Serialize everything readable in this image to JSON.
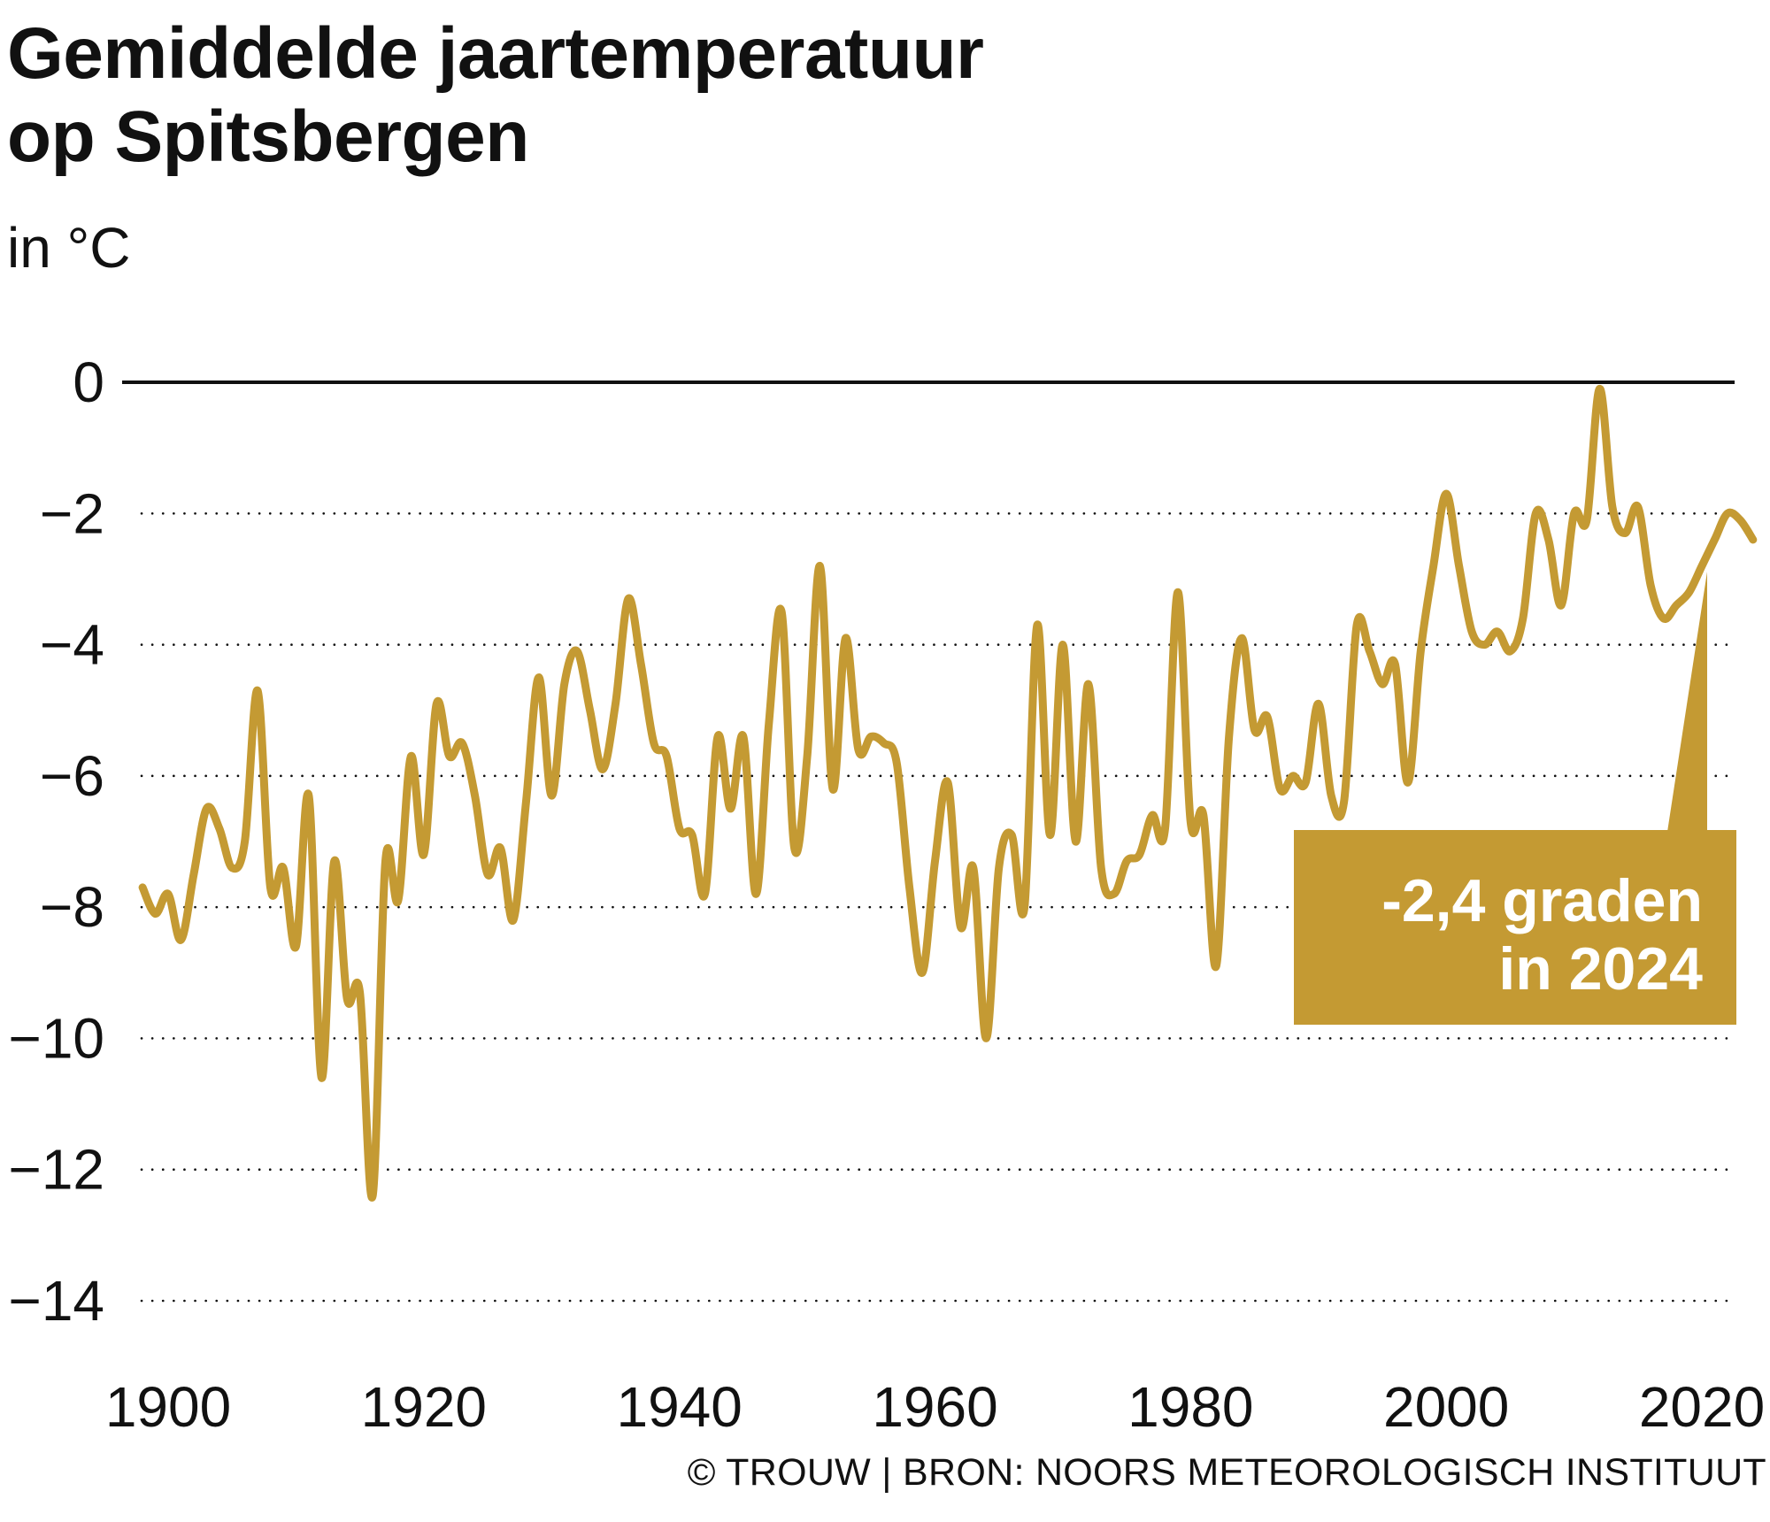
{
  "header": {
    "title_line1": "Gemiddelde jaartemperatuur",
    "title_line2": "op Spitsbergen",
    "unit": "in °C"
  },
  "source": "© TROUW | BRON: NOORS METEOROLOGISCH INSTITUUT",
  "annotation": {
    "line1": "-2,4 graden",
    "line2": "in 2024"
  },
  "colors": {
    "series": "#c49a33",
    "callout_bg": "#c49a33",
    "zero_line": "#111111",
    "grid": "#111111",
    "text": "#111111"
  },
  "chart_data": {
    "type": "line",
    "title": "Gemiddelde jaartemperatuur op Spitsbergen",
    "subtitle": "in °C",
    "xlabel": "",
    "ylabel": "",
    "xlim": [
      1897,
      2023
    ],
    "ylim": [
      -14,
      0
    ],
    "grid": "dotted horizontal",
    "y_ticks": [
      0,
      -2,
      -4,
      -6,
      -8,
      -10,
      -12,
      -14
    ],
    "y_tick_labels": [
      "0",
      "−2",
      "−4",
      "−6",
      "−8",
      "−10",
      "−12",
      "−14"
    ],
    "x_ticks": [
      1900,
      1920,
      1940,
      1960,
      1980,
      2000,
      2020
    ],
    "x_tick_labels": [
      "1900",
      "1920",
      "1940",
      "1960",
      "1980",
      "2000",
      "2020"
    ],
    "series": [
      {
        "x": [
          1898,
          1899,
          1900,
          1901,
          1902,
          1903,
          1904,
          1905,
          1906,
          1907,
          1908,
          1909,
          1910,
          1911,
          1912,
          1913,
          1914,
          1915,
          1916,
          1917,
          1918,
          1919,
          1920,
          1921,
          1922,
          1923,
          1924,
          1925,
          1926,
          1927,
          1928,
          1929,
          1930,
          1931,
          1932,
          1933,
          1934,
          1935,
          1936,
          1937,
          1938,
          1939,
          1940,
          1941,
          1942,
          1943,
          1944,
          1945,
          1946,
          1947,
          1948,
          1949,
          1950,
          1951,
          1952,
          1953,
          1954,
          1955,
          1956,
          1957,
          1958,
          1959,
          1960,
          1961,
          1962,
          1963,
          1964,
          1965,
          1966,
          1967,
          1968,
          1969,
          1970,
          1971,
          1972,
          1973,
          1974,
          1975,
          1976,
          1977,
          1978,
          1979,
          1980,
          1981,
          1982,
          1983,
          1984,
          1985,
          1986,
          1987,
          1988,
          1989,
          1990,
          1991,
          1992,
          1993,
          1994,
          1995,
          1996,
          1997,
          1998,
          1999,
          2000,
          2001,
          2002,
          2003,
          2004,
          2005,
          2006,
          2007,
          2008,
          2009,
          2010,
          2011,
          2012,
          2013,
          2014,
          2015,
          2016,
          2017,
          2018,
          2019,
          2020,
          2021,
          2022,
          2023,
          2024
        ],
        "values": [
          -7.7,
          -8.1,
          -7.8,
          -8.5,
          -7.5,
          -6.5,
          -6.8,
          -7.4,
          -7.0,
          -4.7,
          -7.7,
          -7.4,
          -8.6,
          -6.3,
          -10.6,
          -7.3,
          -9.4,
          -9.3,
          -12.4,
          -7.3,
          -7.9,
          -5.7,
          -7.2,
          -4.9,
          -5.7,
          -5.5,
          -6.3,
          -7.5,
          -7.1,
          -8.2,
          -6.4,
          -4.5,
          -6.3,
          -4.6,
          -4.1,
          -5.0,
          -5.9,
          -4.9,
          -3.3,
          -4.3,
          -5.5,
          -5.7,
          -6.8,
          -6.9,
          -7.8,
          -5.4,
          -6.5,
          -5.4,
          -7.8,
          -5.2,
          -3.5,
          -7.1,
          -5.7,
          -2.8,
          -6.2,
          -3.9,
          -5.6,
          -5.4,
          -5.5,
          -5.8,
          -7.7,
          -9.0,
          -7.3,
          -6.1,
          -8.3,
          -7.4,
          -10.0,
          -7.4,
          -6.9,
          -8.0,
          -3.7,
          -6.9,
          -4.0,
          -7.0,
          -4.6,
          -7.4,
          -7.8,
          -7.3,
          -7.2,
          -6.6,
          -6.8,
          -3.2,
          -6.7,
          -6.6,
          -8.9,
          -5.4,
          -3.9,
          -5.3,
          -5.1,
          -6.2,
          -6.0,
          -6.1,
          -4.9,
          -6.3,
          -6.4,
          -3.7,
          -4.1,
          -4.6,
          -4.3,
          -6.1,
          -4.1,
          -2.8,
          -1.7,
          -2.8,
          -3.8,
          -4.0,
          -3.8,
          -4.1,
          -3.6,
          -2.0,
          -2.4,
          -3.4,
          -2.0,
          -2.1,
          -0.1,
          -1.9,
          -2.3,
          -1.9,
          -3.1,
          -3.6,
          -3.4,
          -3.2,
          -2.8,
          -2.4,
          -2.0,
          -2.1,
          -2.4
        ]
      }
    ],
    "annotations": [
      "-2,4 graden in 2024"
    ]
  }
}
